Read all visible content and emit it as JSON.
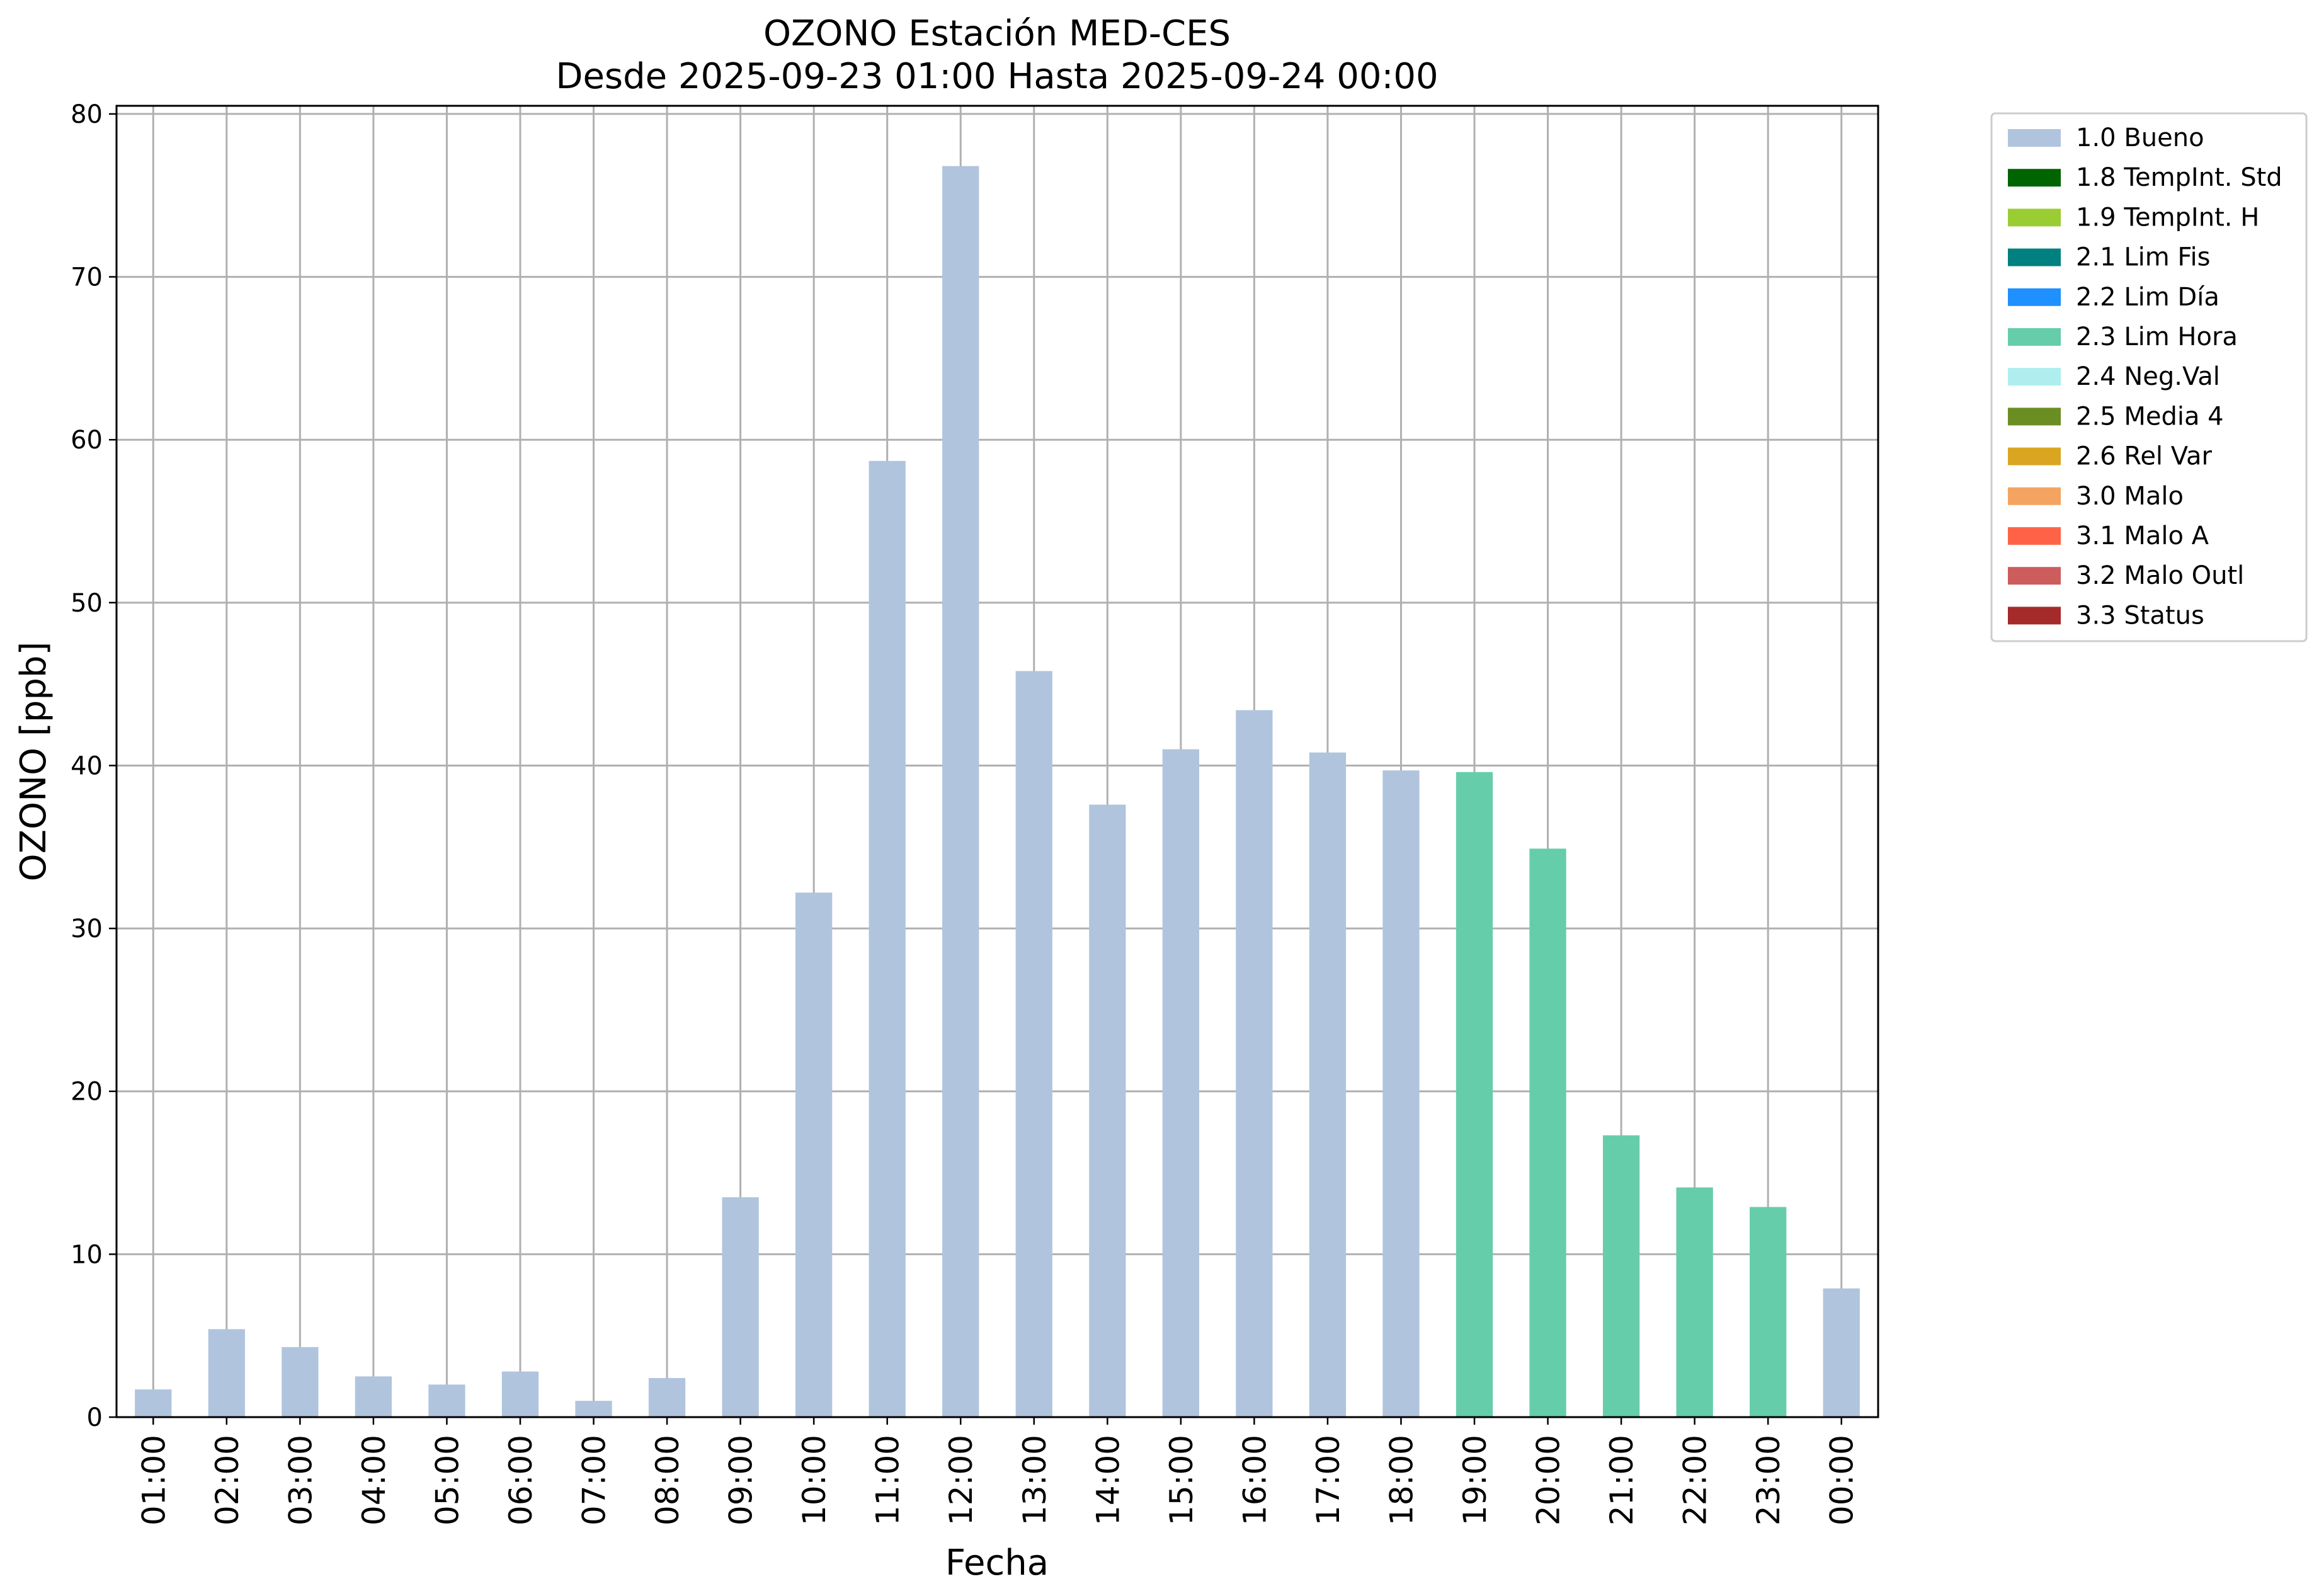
{
  "chart_data": {
    "type": "bar",
    "title": "OZONO Estación MED-CES",
    "subtitle": "Desde 2025-09-23 01:00 Hasta 2025-09-24 00:00",
    "xlabel": "Fecha",
    "ylabel": "OZONO [ppb]",
    "ylim": [
      0,
      80.5
    ],
    "yticks": [
      0,
      10,
      20,
      30,
      40,
      50,
      60,
      70,
      80
    ],
    "grid": true,
    "legend_position": "outside-top-right",
    "categories": [
      "01:00",
      "02:00",
      "03:00",
      "04:00",
      "05:00",
      "06:00",
      "07:00",
      "08:00",
      "09:00",
      "10:00",
      "11:00",
      "12:00",
      "13:00",
      "14:00",
      "15:00",
      "16:00",
      "17:00",
      "18:00",
      "19:00",
      "20:00",
      "21:00",
      "22:00",
      "23:00",
      "00:00"
    ],
    "values": [
      1.7,
      5.4,
      4.3,
      2.5,
      2.0,
      2.8,
      1.0,
      2.4,
      13.5,
      32.2,
      58.7,
      76.8,
      45.8,
      37.6,
      41.0,
      43.4,
      40.8,
      39.7,
      39.6,
      34.9,
      17.3,
      14.1,
      12.9,
      7.9
    ],
    "bar_flags": [
      "1.0 Bueno",
      "1.0 Bueno",
      "1.0 Bueno",
      "1.0 Bueno",
      "1.0 Bueno",
      "1.0 Bueno",
      "1.0 Bueno",
      "1.0 Bueno",
      "1.0 Bueno",
      "1.0 Bueno",
      "1.0 Bueno",
      "1.0 Bueno",
      "1.0 Bueno",
      "1.0 Bueno",
      "1.0 Bueno",
      "1.0 Bueno",
      "1.0 Bueno",
      "1.0 Bueno",
      "2.3 Lim Hora",
      "2.3 Lim Hora",
      "2.3 Lim Hora",
      "2.3 Lim Hora",
      "2.3 Lim Hora",
      "1.0 Bueno"
    ],
    "legend": [
      {
        "label": "1.0 Bueno",
        "color": "#b0c4de"
      },
      {
        "label": "1.8 TempInt. Std",
        "color": "#006400"
      },
      {
        "label": "1.9 TempInt. H",
        "color": "#9acd32"
      },
      {
        "label": "2.1 Lim Fis",
        "color": "#008080"
      },
      {
        "label": "2.2 Lim Día",
        "color": "#1e90ff"
      },
      {
        "label": "2.3 Lim Hora",
        "color": "#66cdaa"
      },
      {
        "label": "2.4 Neg.Val",
        "color": "#afeeee"
      },
      {
        "label": "2.5 Media 4",
        "color": "#6b8e23"
      },
      {
        "label": "2.6 Rel Var",
        "color": "#daa520"
      },
      {
        "label": "3.0 Malo",
        "color": "#f4a460"
      },
      {
        "label": "3.1 Malo A",
        "color": "#ff6347"
      },
      {
        "label": "3.2 Malo Outl",
        "color": "#cd5c5c"
      },
      {
        "label": "3.3 Status",
        "color": "#a52a2a"
      }
    ]
  }
}
